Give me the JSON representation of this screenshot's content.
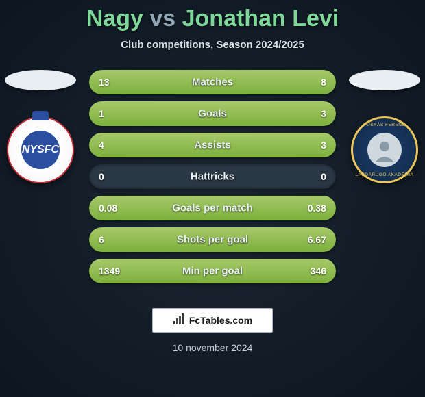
{
  "title": {
    "player1": "Nagy",
    "vs": "vs",
    "player2": "Jonathan Levi"
  },
  "subtitle": "Club competitions, Season 2024/2025",
  "crest_left": {
    "initials": "NYSFC",
    "bg_color": "#ffffff",
    "ring_color": "#c42f3a",
    "inner_color": "#2b4fa0"
  },
  "crest_right": {
    "top_text": "PUSKÁS FERENC",
    "bottom_text": "LABDARÚGÓ AKADÉMIA",
    "bg_color": "#1d3e6b",
    "ring_color": "#e9c55a"
  },
  "colors": {
    "bar_fill": "#7db03c",
    "bar_bg": "#2a3744",
    "title_player": "#7fd89a",
    "title_vs": "#8fa5b5",
    "page_center": "#1a2632",
    "page_edge": "#0d1620"
  },
  "stats": [
    {
      "label": "Matches",
      "left_val": "13",
      "right_val": "8",
      "left_pct": 62,
      "right_pct": 38
    },
    {
      "label": "Goals",
      "left_val": "1",
      "right_val": "3",
      "left_pct": 25,
      "right_pct": 75
    },
    {
      "label": "Assists",
      "left_val": "4",
      "right_val": "3",
      "left_pct": 57,
      "right_pct": 43
    },
    {
      "label": "Hattricks",
      "left_val": "0",
      "right_val": "0",
      "left_pct": 0,
      "right_pct": 0
    },
    {
      "label": "Goals per match",
      "left_val": "0.08",
      "right_val": "0.38",
      "left_pct": 17,
      "right_pct": 83
    },
    {
      "label": "Shots per goal",
      "left_val": "6",
      "right_val": "6.67",
      "left_pct": 47,
      "right_pct": 53
    },
    {
      "label": "Min per goal",
      "left_val": "1349",
      "right_val": "346",
      "left_pct": 80,
      "right_pct": 20
    }
  ],
  "footer": {
    "site": "FcTables.com",
    "date": "10 november 2024"
  }
}
